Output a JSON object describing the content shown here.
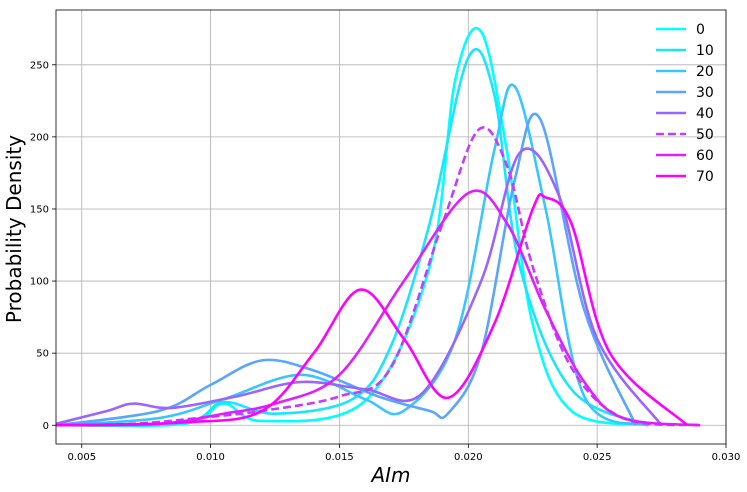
{
  "chart_data": {
    "type": "line",
    "xlabel": "AIm",
    "ylabel": "Probability Density",
    "xlim": [
      0.004,
      0.03
    ],
    "ylim": [
      -13,
      288
    ],
    "xticks": [
      0.005,
      0.01,
      0.015,
      0.02,
      0.025,
      0.03
    ],
    "xtick_labels": [
      "0.005",
      "0.010",
      "0.015",
      "0.020",
      "0.025",
      "0.030"
    ],
    "yticks": [
      0,
      50,
      100,
      150,
      200,
      250
    ],
    "ytick_labels": [
      "0",
      "50",
      "100",
      "150",
      "200",
      "250"
    ],
    "grid": true,
    "legend_position": "top-right",
    "series": [
      {
        "name": "0",
        "color": "#00ffff",
        "dashed": false,
        "x": [
          0.004,
          0.009,
          0.0105,
          0.012,
          0.016,
          0.0185,
          0.0195,
          0.0205,
          0.0215,
          0.0225,
          0.024,
          0.027
        ],
        "y": [
          0,
          1,
          15,
          3,
          17,
          110,
          240,
          273,
          190,
          70,
          10,
          0
        ]
      },
      {
        "name": "10",
        "color": "#1ae5ff",
        "dashed": false,
        "x": [
          0.004,
          0.009,
          0.0105,
          0.0125,
          0.0155,
          0.017,
          0.0185,
          0.02,
          0.021,
          0.022,
          0.024,
          0.027
        ],
        "y": [
          0,
          2,
          16,
          8,
          18,
          55,
          140,
          255,
          230,
          110,
          25,
          0
        ]
      },
      {
        "name": "20",
        "color": "#39c6ff",
        "dashed": false,
        "x": [
          0.004,
          0.008,
          0.0105,
          0.0135,
          0.016,
          0.0175,
          0.0195,
          0.021,
          0.0218,
          0.023,
          0.0245,
          0.027
        ],
        "y": [
          0,
          5,
          18,
          35,
          18,
          10,
          60,
          190,
          235,
          150,
          20,
          0
        ]
      },
      {
        "name": "30",
        "color": "#5aa5ff",
        "dashed": false,
        "x": [
          0.004,
          0.008,
          0.01,
          0.012,
          0.014,
          0.0165,
          0.0185,
          0.0192,
          0.0205,
          0.0218,
          0.0228,
          0.0245,
          0.0265
        ],
        "y": [
          0,
          10,
          28,
          45,
          38,
          20,
          10,
          8,
          50,
          170,
          212,
          80,
          0
        ]
      },
      {
        "name": "40",
        "color": "#9a65ff",
        "dashed": false,
        "x": [
          0.004,
          0.006,
          0.007,
          0.0085,
          0.011,
          0.0135,
          0.016,
          0.0182,
          0.0205,
          0.022,
          0.0235,
          0.025,
          0.0275
        ],
        "y": [
          1,
          10,
          15,
          12,
          20,
          30,
          25,
          22,
          100,
          189,
          160,
          60,
          0
        ]
      },
      {
        "name": "50",
        "color": "#c23dff",
        "dashed": true,
        "x": [
          0.004,
          0.007,
          0.0095,
          0.012,
          0.015,
          0.017,
          0.019,
          0.0204,
          0.0215,
          0.0225,
          0.024,
          0.026,
          0.029
        ],
        "y": [
          0,
          1,
          5,
          10,
          20,
          40,
          140,
          205,
          180,
          110,
          40,
          5,
          0
        ]
      },
      {
        "name": "60",
        "color": "#e11eff",
        "dashed": false,
        "x": [
          0.004,
          0.008,
          0.0105,
          0.0125,
          0.015,
          0.0175,
          0.02,
          0.0215,
          0.023,
          0.0245,
          0.026,
          0.029
        ],
        "y": [
          0,
          1,
          8,
          15,
          35,
          100,
          161,
          140,
          80,
          30,
          5,
          0
        ]
      },
      {
        "name": "70",
        "color": "#ff00ff",
        "dashed": false,
        "x": [
          0.004,
          0.009,
          0.012,
          0.014,
          0.0158,
          0.0175,
          0.0192,
          0.021,
          0.0225,
          0.023,
          0.024,
          0.0255,
          0.0285
        ],
        "y": [
          0,
          2,
          10,
          50,
          94,
          60,
          19,
          70,
          150,
          158,
          140,
          50,
          0
        ]
      }
    ]
  }
}
